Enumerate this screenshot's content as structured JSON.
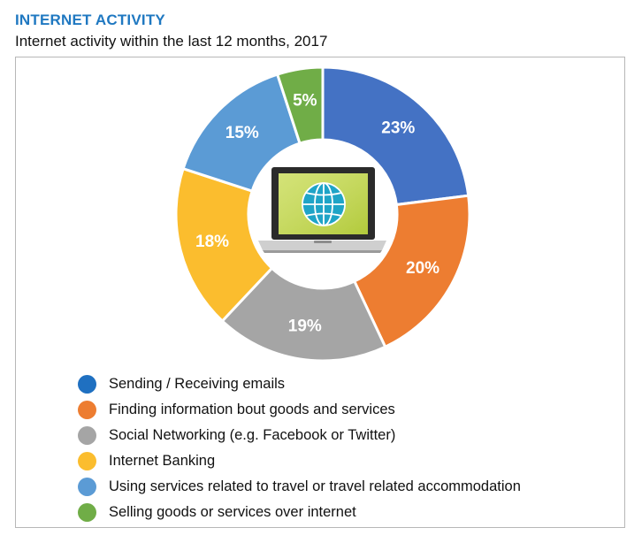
{
  "header": {
    "title": "INTERNET ACTIVITY",
    "subtitle": "Internet activity within the last 12 months, 2017"
  },
  "chart_data": {
    "type": "pie",
    "title": "INTERNET ACTIVITY",
    "subtitle": "Internet activity within the last 12 months, 2017",
    "donut": true,
    "center_icon": "laptop-globe-icon",
    "legend_position": "bottom",
    "categories": [
      "Sending / Receiving emails",
      "Finding information bout goods and services",
      "Social Networking (e.g. Facebook or Twitter)",
      "Internet Banking",
      "Using services related to travel or travel related accommodation",
      "Selling goods or services over internet"
    ],
    "values": [
      23,
      20,
      19,
      18,
      15,
      5
    ],
    "value_labels": [
      "23%",
      "20%",
      "19%",
      "18%",
      "15%",
      "5%"
    ],
    "colors": [
      "#4472c4",
      "#ed7d31",
      "#a5a5a5",
      "#fbbd2e",
      "#5b9bd5",
      "#70ad47"
    ],
    "legend_colors": [
      "#1f70c1",
      "#ed7d31",
      "#a5a5a5",
      "#fbbd2e",
      "#5b9bd5",
      "#70ad47"
    ]
  }
}
